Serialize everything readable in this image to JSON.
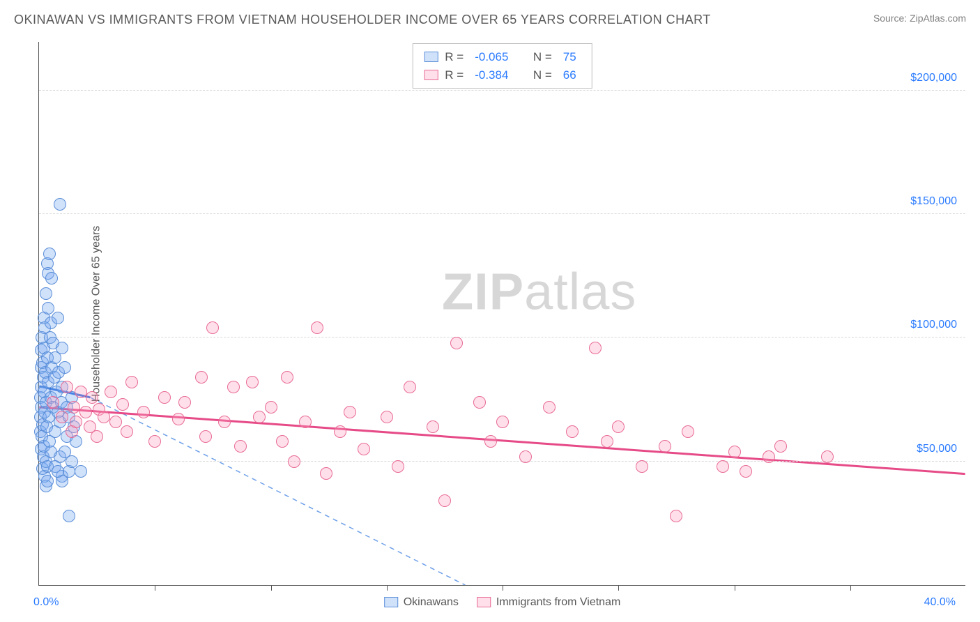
{
  "title": "OKINAWAN VS IMMIGRANTS FROM VIETNAM HOUSEHOLDER INCOME OVER 65 YEARS CORRELATION CHART",
  "source_prefix": "Source: ",
  "source": "ZipAtlas.com",
  "yaxis_title": "Householder Income Over 65 years",
  "watermark_a": "ZIP",
  "watermark_b": "atlas",
  "chart": {
    "type": "scatter",
    "xlim": [
      0,
      40
    ],
    "ylim": [
      0,
      220000
    ],
    "x_tick_percent_step": 5,
    "y_ticks": [
      50000,
      100000,
      150000,
      200000
    ],
    "y_tick_labels": [
      "$50,000",
      "$100,000",
      "$150,000",
      "$200,000"
    ],
    "x_min_label": "0.0%",
    "x_max_label": "40.0%",
    "grid_color": "#d8d8d8",
    "axis_color": "#555555",
    "background": "#ffffff",
    "point_radius": 9,
    "point_border": 1.4,
    "series": [
      {
        "key": "okinawans",
        "label": "Okinawans",
        "fill": "rgba(120,170,240,0.35)",
        "stroke": "#5a8ed8",
        "trend_solid_color": "#2b6fe0",
        "trend_dash_color": "#6ea0e8",
        "R": "-0.065",
        "N": "75",
        "trend_solid": {
          "x1": 0.0,
          "y1": 80500,
          "x2": 2.2,
          "y2": 76000
        },
        "trend_dash": {
          "x1": 2.2,
          "y1": 76000,
          "x2": 18.4,
          "y2": 0
        },
        "points": [
          [
            0.05,
            76000
          ],
          [
            0.05,
            68000
          ],
          [
            0.05,
            62000
          ],
          [
            0.08,
            55000
          ],
          [
            0.08,
            88000
          ],
          [
            0.1,
            72000
          ],
          [
            0.1,
            80000
          ],
          [
            0.1,
            95000
          ],
          [
            0.12,
            60000
          ],
          [
            0.12,
            100000
          ],
          [
            0.15,
            65000
          ],
          [
            0.15,
            47000
          ],
          [
            0.15,
            90000
          ],
          [
            0.18,
            52000
          ],
          [
            0.18,
            84000
          ],
          [
            0.2,
            78000
          ],
          [
            0.2,
            108000
          ],
          [
            0.22,
            56000
          ],
          [
            0.22,
            96000
          ],
          [
            0.25,
            44000
          ],
          [
            0.25,
            70000
          ],
          [
            0.25,
            104000
          ],
          [
            0.28,
            86000
          ],
          [
            0.3,
            118000
          ],
          [
            0.3,
            74000
          ],
          [
            0.3,
            50000
          ],
          [
            0.32,
            64000
          ],
          [
            0.35,
            92000
          ],
          [
            0.35,
            130000
          ],
          [
            0.35,
            48000
          ],
          [
            0.38,
            126000
          ],
          [
            0.4,
            82000
          ],
          [
            0.4,
            112000
          ],
          [
            0.42,
            68000
          ],
          [
            0.45,
            134000
          ],
          [
            0.45,
            58000
          ],
          [
            0.48,
            100000
          ],
          [
            0.5,
            76000
          ],
          [
            0.5,
            106000
          ],
          [
            0.55,
            88000
          ],
          [
            0.55,
            124000
          ],
          [
            0.6,
            72000
          ],
          [
            0.6,
            98000
          ],
          [
            0.65,
            84000
          ],
          [
            0.7,
            92000
          ],
          [
            0.7,
            62000
          ],
          [
            0.75,
            78000
          ],
          [
            0.8,
            108000
          ],
          [
            0.8,
            70000
          ],
          [
            0.85,
            86000
          ],
          [
            0.9,
            66000
          ],
          [
            0.9,
            52000
          ],
          [
            0.95,
            74000
          ],
          [
            1.0,
            80000
          ],
          [
            1.0,
            96000
          ],
          [
            1.0,
            44000
          ],
          [
            1.1,
            54000
          ],
          [
            1.1,
            88000
          ],
          [
            1.2,
            60000
          ],
          [
            1.2,
            72000
          ],
          [
            1.3,
            68000
          ],
          [
            1.3,
            46000
          ],
          [
            1.4,
            76000
          ],
          [
            1.5,
            64000
          ],
          [
            1.6,
            58000
          ],
          [
            0.9,
            154000
          ],
          [
            0.3,
            40000
          ],
          [
            0.35,
            42000
          ],
          [
            0.7,
            48000
          ],
          [
            1.0,
            42000
          ],
          [
            1.4,
            50000
          ],
          [
            1.3,
            28000
          ],
          [
            1.8,
            46000
          ],
          [
            0.5,
            54000
          ],
          [
            0.8,
            46000
          ]
        ]
      },
      {
        "key": "vietnam",
        "label": "Immigrants from Vietnam",
        "fill": "rgba(255,160,190,0.32)",
        "stroke": "#e86a94",
        "trend_solid_color": "#e64b88",
        "trend_dash_color": "#f3a4c0",
        "R": "-0.384",
        "N": "66",
        "trend_solid": {
          "x1": 0.0,
          "y1": 72000,
          "x2": 40.0,
          "y2": 45000
        },
        "trend_dash": null,
        "points": [
          [
            0.6,
            74000
          ],
          [
            1.0,
            68000
          ],
          [
            1.2,
            80000
          ],
          [
            1.4,
            62000
          ],
          [
            1.5,
            72000
          ],
          [
            1.6,
            66000
          ],
          [
            1.8,
            78000
          ],
          [
            2.0,
            70000
          ],
          [
            2.2,
            64000
          ],
          [
            2.3,
            76000
          ],
          [
            2.5,
            60000
          ],
          [
            2.6,
            71000
          ],
          [
            2.8,
            68000
          ],
          [
            3.1,
            78000
          ],
          [
            3.3,
            66000
          ],
          [
            3.6,
            73000
          ],
          [
            3.8,
            62000
          ],
          [
            4.0,
            82000
          ],
          [
            4.5,
            70000
          ],
          [
            5.0,
            58000
          ],
          [
            5.4,
            76000
          ],
          [
            6.0,
            67000
          ],
          [
            6.3,
            74000
          ],
          [
            7.0,
            84000
          ],
          [
            7.2,
            60000
          ],
          [
            7.5,
            104000
          ],
          [
            8.0,
            66000
          ],
          [
            8.4,
            80000
          ],
          [
            8.7,
            56000
          ],
          [
            9.2,
            82000
          ],
          [
            9.5,
            68000
          ],
          [
            10.0,
            72000
          ],
          [
            10.5,
            58000
          ],
          [
            10.7,
            84000
          ],
          [
            11.0,
            50000
          ],
          [
            11.5,
            66000
          ],
          [
            12.0,
            104000
          ],
          [
            12.4,
            45000
          ],
          [
            13.0,
            62000
          ],
          [
            13.4,
            70000
          ],
          [
            14.0,
            55000
          ],
          [
            15.0,
            68000
          ],
          [
            15.5,
            48000
          ],
          [
            16.0,
            80000
          ],
          [
            17.0,
            64000
          ],
          [
            17.5,
            34000
          ],
          [
            18.0,
            98000
          ],
          [
            19.0,
            74000
          ],
          [
            19.5,
            58000
          ],
          [
            20.0,
            66000
          ],
          [
            21.0,
            52000
          ],
          [
            22.0,
            72000
          ],
          [
            23.0,
            62000
          ],
          [
            24.0,
            96000
          ],
          [
            24.5,
            58000
          ],
          [
            25.0,
            64000
          ],
          [
            26.0,
            48000
          ],
          [
            27.0,
            56000
          ],
          [
            27.5,
            28000
          ],
          [
            28.0,
            62000
          ],
          [
            29.5,
            48000
          ],
          [
            30.0,
            54000
          ],
          [
            30.5,
            46000
          ],
          [
            31.5,
            52000
          ],
          [
            32.0,
            56000
          ],
          [
            34.0,
            52000
          ]
        ]
      }
    ],
    "bottom_legend": [
      {
        "label_key": "okinawans_label",
        "fill": "rgba(120,170,240,0.55)",
        "stroke": "#5a8ed8"
      },
      {
        "label_key": "vietnam_label",
        "fill": "rgba(255,160,190,0.55)",
        "stroke": "#e86a94"
      }
    ]
  },
  "r_label": "R =",
  "n_label": "N ="
}
